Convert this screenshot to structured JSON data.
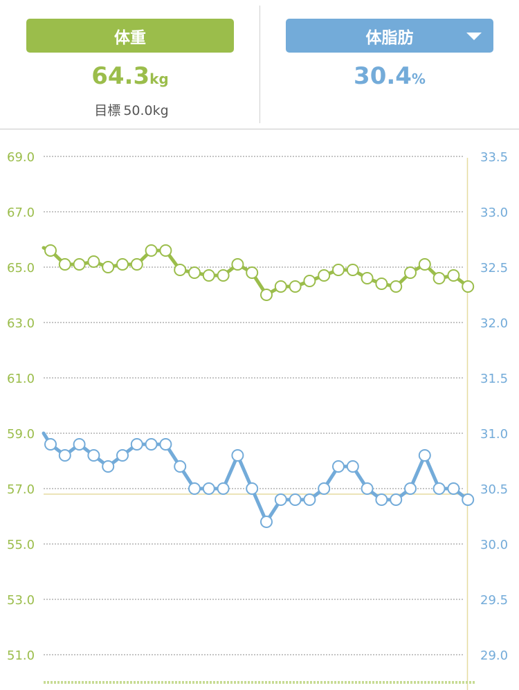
{
  "header": {
    "weight_button": "体重",
    "fat_button": "体脂肪",
    "weight_value": "64.3",
    "weight_unit": "kg",
    "fat_value": "30.4",
    "fat_unit": "%",
    "goal_label": "目標",
    "goal_value": "50.0kg"
  },
  "colors": {
    "weight": "#9bbd4b",
    "fat": "#73abd9",
    "goal_line": "#e6dca0"
  },
  "chart_data": {
    "type": "line",
    "yleft_ticks": [
      "69.0",
      "67.0",
      "65.0",
      "63.0",
      "61.0",
      "59.0",
      "57.0",
      "55.0",
      "53.0",
      "51.0"
    ],
    "yright_ticks": [
      "33.5",
      "33.0",
      "32.5",
      "32.0",
      "31.5",
      "31.0",
      "30.5",
      "30.0",
      "29.5",
      "29.0"
    ],
    "yleft_range": [
      49.5,
      69.0
    ],
    "yright_range": [
      28.875,
      33.5
    ],
    "series": [
      {
        "axis": "left",
        "values": [
          65.6,
          65.1,
          65.1,
          65.2,
          65.0,
          65.1,
          65.1,
          65.6,
          65.6,
          64.9,
          64.8,
          64.7,
          64.7,
          65.1,
          64.8,
          64.0,
          64.3,
          64.3,
          64.5,
          64.7,
          64.9,
          64.9,
          64.6,
          64.4,
          64.3,
          64.8,
          65.1,
          64.6,
          64.7,
          64.3
        ]
      },
      {
        "axis": "right",
        "values": [
          30.9,
          30.8,
          30.9,
          30.8,
          30.7,
          30.8,
          30.9,
          30.9,
          30.9,
          30.7,
          30.5,
          30.5,
          30.5,
          30.8,
          30.5,
          30.2,
          30.4,
          30.4,
          30.4,
          30.5,
          30.7,
          30.7,
          30.5,
          30.4,
          30.4,
          30.5,
          30.8,
          30.5,
          30.5,
          30.4
        ]
      }
    ],
    "goal_right_value": 30.45
  }
}
